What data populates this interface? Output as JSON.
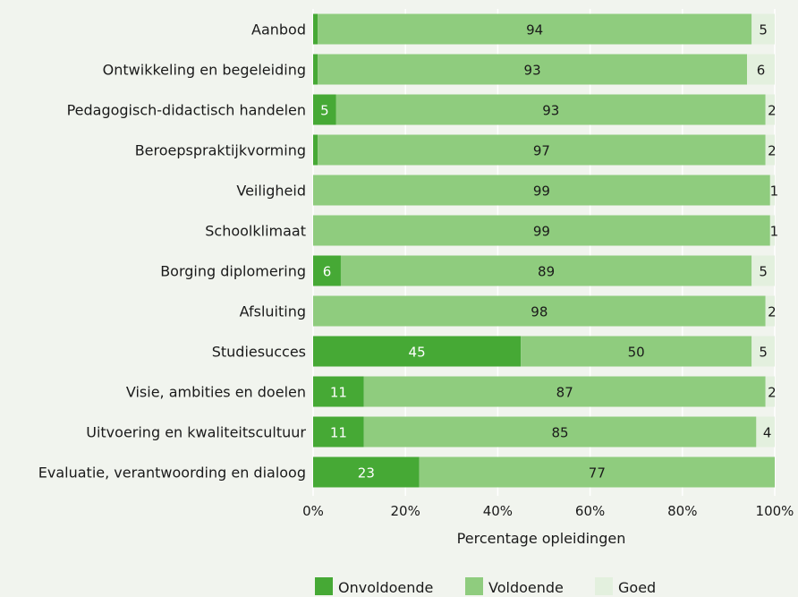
{
  "chart_data": {
    "type": "bar",
    "orientation": "horizontal",
    "stacked": true,
    "xlabel": "Percentage opleidingen",
    "xlim": [
      0,
      100
    ],
    "xticks": [
      "0%",
      "20%",
      "40%",
      "60%",
      "80%",
      "100%"
    ],
    "grid": true,
    "legend_position": "bottom",
    "categories": [
      "Aanbod",
      "Ontwikkeling en begeleiding",
      "Pedagogisch-didactisch handelen",
      "Beroepspraktijkvorming",
      "Veiligheid",
      "Schoolklimaat",
      "Borging diplomering",
      "Afsluiting",
      "Studiesucces",
      "Visie, ambities en doelen",
      "Uitvoering en kwaliteitscultuur",
      "Evaluatie, verantwoording en dialoog"
    ],
    "series": [
      {
        "name": "Onvoldoende",
        "color": "#46a935",
        "values": [
          1,
          1,
          5,
          1,
          0,
          0,
          6,
          0,
          45,
          11,
          11,
          23
        ]
      },
      {
        "name": "Voldoende",
        "color": "#8fcc7e",
        "values": [
          94,
          93,
          93,
          97,
          99,
          99,
          89,
          98,
          50,
          87,
          85,
          77
        ]
      },
      {
        "name": "Goed",
        "color": "#e3f0de",
        "values": [
          5,
          6,
          2,
          2,
          1,
          1,
          5,
          2,
          5,
          2,
          4,
          0
        ]
      }
    ]
  }
}
